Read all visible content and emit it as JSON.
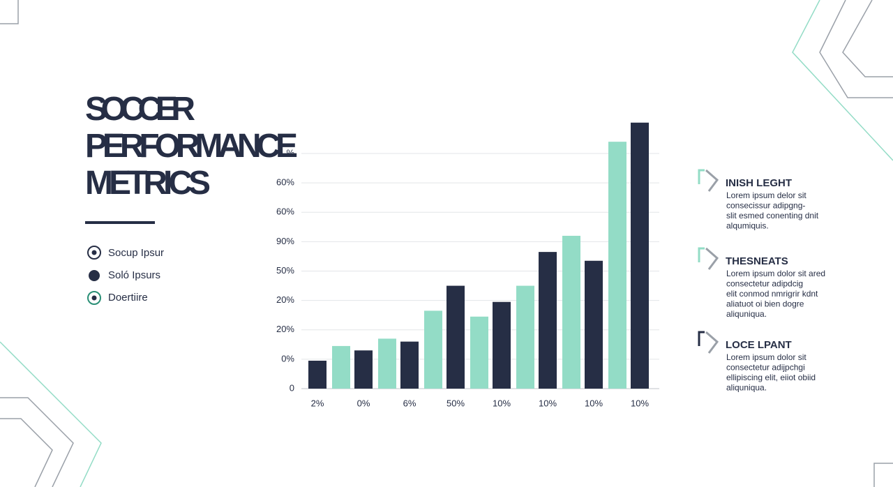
{
  "title": [
    "SOCCER",
    "PERFORMANCE",
    "METRICS"
  ],
  "list": [
    "Socup Ipsur",
    "Soló Ipsurs",
    "Doertiire"
  ],
  "chart_data": {
    "type": "bar",
    "categories": [
      "2%",
      "0%",
      "6%",
      "50%",
      "10%",
      "10%",
      "10%",
      "10%"
    ],
    "series": [
      {
        "color": "#262e45",
        "values": [
          0.95,
          1.3,
          1.6,
          3.5,
          2.95,
          4.65,
          4.35,
          9.05
        ]
      },
      {
        "color": "#93dcc6",
        "values": [
          1.45,
          1.7,
          2.65,
          2.45,
          3.5,
          5.2,
          8.4,
          null
        ]
      }
    ],
    "ylim": [
      0,
      9.2
    ],
    "yticks": [
      0,
      {
        "value": 1,
        "label": "0%"
      },
      {
        "value": 2,
        "label": "20%"
      },
      {
        "value": 3,
        "label": "20%"
      },
      {
        "value": 4,
        "label": "50%"
      },
      {
        "value": 5,
        "label": "90%"
      },
      {
        "value": 6,
        "label": "60%"
      },
      {
        "value": 7,
        "label": "60%"
      },
      {
        "value": 8,
        "label": "%"
      }
    ],
    "grid": true
  },
  "notes": [
    {
      "title": "INISH LEGHT",
      "lines": [
        "Lorem ipsum delor sit",
        "consecissur adipgng-",
        "slit esmed conenting dnit",
        "alqumiquis."
      ]
    },
    {
      "title": "THESNEATS",
      "lines": [
        "Lorem ipsum dolor sit ared",
        "consectetur adipdcig",
        "elit conmod nmrigrir kdnt",
        "aliatuot oi bien dogre",
        "aliquniqua."
      ]
    },
    {
      "title": "LOCE LPANT",
      "lines": [
        "Lorem ipsum dolor sit",
        "consectetur adijpchgi",
        "ellipiscing elit, eiiot obiid",
        "aliquniqua."
      ]
    }
  ]
}
